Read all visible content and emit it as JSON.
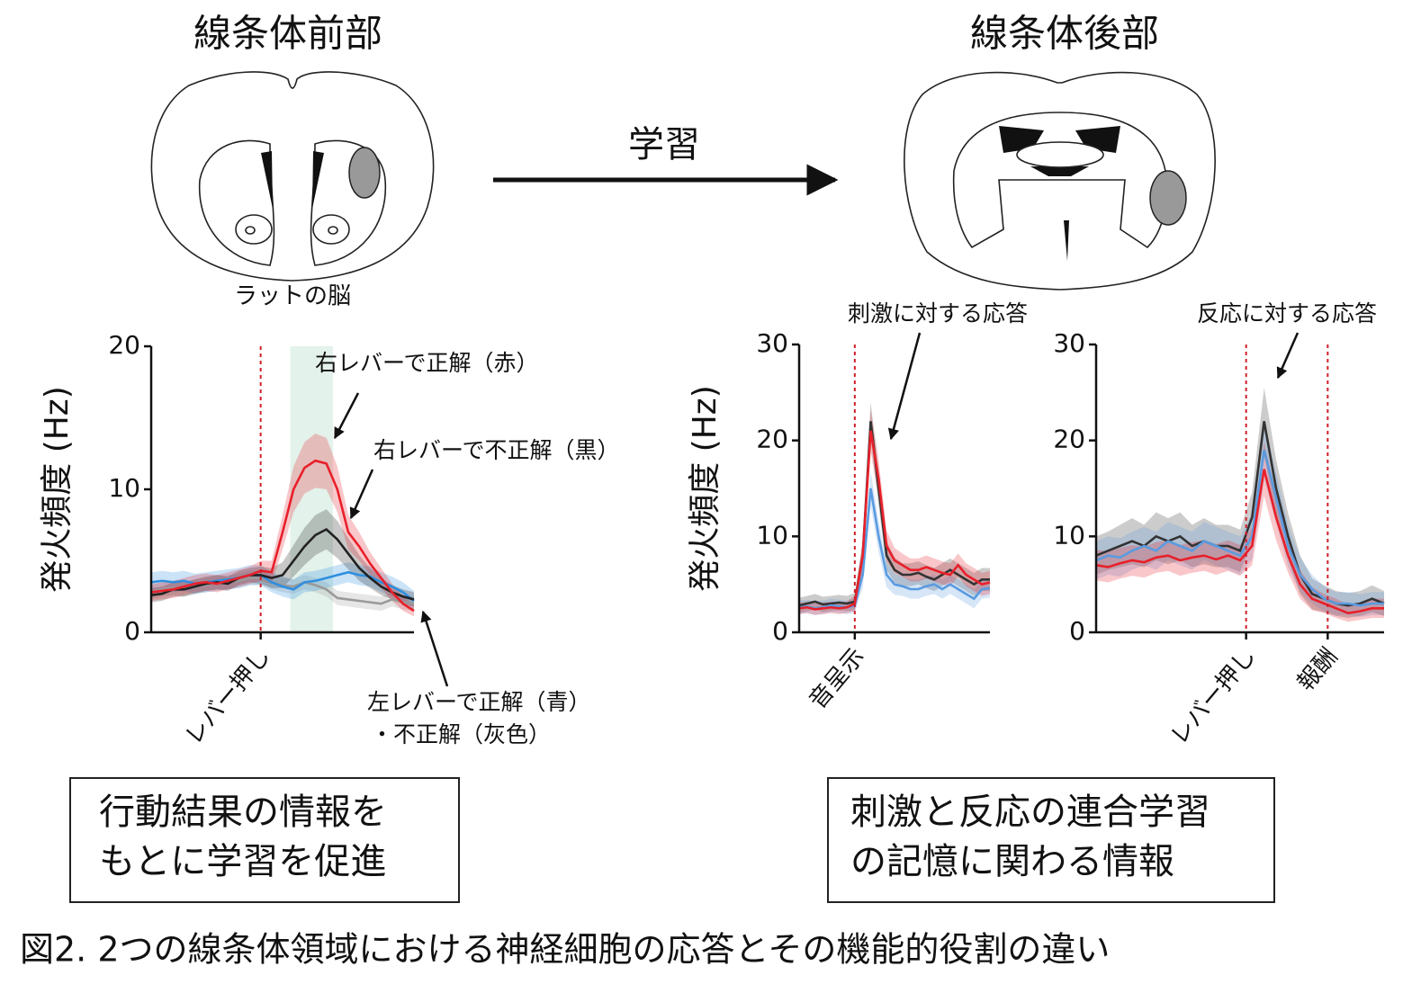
{
  "figure": {
    "titles": [
      "線条体前部",
      "線条体後部"
    ],
    "arrow_label": "学習",
    "brain_label": "ラットの脳",
    "boxes": [
      [
        "行動結果の情報を",
        "もとに学習を促進"
      ],
      [
        "刺激と反応の連合学習",
        "の記憶に関わる情報"
      ]
    ],
    "caption": "図2. 2つの線条体領域における神経細胞の応答とその機能的役割の違い"
  },
  "chart_data": [
    {
      "type": "line",
      "ylabel": "発火頻度 (Hz)",
      "xlim": [
        0,
        24
      ],
      "ylim": [
        0,
        20
      ],
      "yticks": [
        0,
        10,
        20
      ],
      "events": [
        {
          "label": "レバー押し",
          "x": 10
        }
      ],
      "highlight": [
        12.7,
        16.6
      ],
      "annotations": [
        "右レバーで正解（赤）",
        "右レバーで不正解（黒）",
        "左レバーで正解（青）",
        "・不正解（灰色）"
      ],
      "series": [
        {
          "color": "#9a9a9a",
          "values": [
            2.8,
            3,
            3.1,
            3,
            3.2,
            3.3,
            3.5,
            3.5,
            3.6,
            3.8,
            3.8,
            3.5,
            3.3,
            3.2,
            3.5,
            3.3,
            3,
            2.4,
            2.3,
            2.2,
            2.1,
            2,
            2.3,
            2.1,
            2
          ],
          "errors": [
            0.5,
            0.5,
            0.5,
            0.5,
            0.5,
            0.5,
            0.5,
            0.5,
            0.5,
            0.5,
            0.5,
            0.5,
            0.5,
            0.5,
            0.5,
            0.5,
            0.5,
            0.5,
            0.5,
            0.5,
            0.5,
            0.5,
            0.5,
            0.5,
            0.5
          ]
        },
        {
          "color": "#2e8fe0",
          "values": [
            3.5,
            3.6,
            3.5,
            3.6,
            3.4,
            3.5,
            3.6,
            3.7,
            3.8,
            4,
            4,
            3.5,
            3.2,
            3,
            3.5,
            3.6,
            3.8,
            4,
            4.2,
            4,
            3.9,
            3.5,
            3.2,
            2.8,
            2.2
          ],
          "errors": [
            0.7,
            0.7,
            0.7,
            0.7,
            0.7,
            0.7,
            0.7,
            0.7,
            0.7,
            0.7,
            0.7,
            0.7,
            0.7,
            0.7,
            0.7,
            0.7,
            0.7,
            0.7,
            0.7,
            0.7,
            0.7,
            0.7,
            0.7,
            0.7,
            0.7
          ]
        },
        {
          "color": "#222222",
          "values": [
            2.6,
            2.7,
            3,
            3,
            3.2,
            3.4,
            3.5,
            3.4,
            3.8,
            4,
            4,
            3.8,
            4,
            5,
            6,
            6.8,
            7.2,
            6.5,
            5.5,
            4.5,
            3.8,
            3.2,
            2.8,
            2.5,
            2.3
          ],
          "errors": [
            0.5,
            0.5,
            0.5,
            0.5,
            0.5,
            0.5,
            0.5,
            0.5,
            0.5,
            0.5,
            0.6,
            0.7,
            0.9,
            1.1,
            1.3,
            1.4,
            1.4,
            1.3,
            1.1,
            0.9,
            0.7,
            0.6,
            0.5,
            0.5,
            0.5
          ]
        },
        {
          "color": "#e8202a",
          "values": [
            2.8,
            2.9,
            3,
            3.2,
            3.4,
            3.5,
            3.4,
            3.6,
            3.8,
            4,
            4.3,
            4.2,
            7,
            10,
            11.5,
            12,
            11.8,
            10,
            7,
            6,
            4.8,
            3.8,
            2.8,
            2,
            1.5
          ],
          "errors": [
            0.6,
            0.6,
            0.6,
            0.6,
            0.6,
            0.6,
            0.6,
            0.6,
            0.6,
            0.6,
            0.7,
            0.8,
            1.2,
            1.6,
            1.8,
            1.9,
            1.8,
            1.6,
            1.2,
            1,
            0.8,
            0.7,
            0.6,
            0.5,
            0.4
          ]
        }
      ]
    },
    {
      "type": "line",
      "ylabel": "発火頻度 (Hz)",
      "xlim": [
        0,
        24
      ],
      "ylim": [
        0,
        30
      ],
      "yticks": [
        0,
        10,
        20,
        30
      ],
      "events": [
        {
          "label": "音呈示",
          "x": 7
        }
      ],
      "annotations": [
        "刺激に対する応答"
      ],
      "series": [
        {
          "color": "#333333",
          "values": [
            2.8,
            3,
            3.2,
            2.9,
            3,
            3.1,
            3,
            3.2,
            8,
            22,
            15,
            8,
            6.5,
            6,
            6,
            6.2,
            5.8,
            5.5,
            6,
            6.5,
            6,
            5.5,
            5,
            5.5,
            5.5
          ],
          "errors": [
            0.8,
            0.8,
            0.8,
            0.8,
            0.8,
            0.8,
            0.8,
            0.9,
            1.5,
            2,
            1.8,
            1.5,
            1.3,
            1.2,
            1.2,
            1.2,
            1.2,
            1.2,
            1.2,
            1.2,
            1.2,
            1.2,
            1.2,
            1.2,
            1.2
          ]
        },
        {
          "color": "#5a9be0",
          "values": [
            2.6,
            2.7,
            2.5,
            2.6,
            2.8,
            2.7,
            2.6,
            2.8,
            6,
            15,
            10,
            6,
            5,
            4.8,
            4.5,
            4.5,
            4.8,
            5,
            4.5,
            5,
            4.5,
            4,
            3.5,
            4.5,
            4.6
          ],
          "errors": [
            0.7,
            0.7,
            0.7,
            0.7,
            0.7,
            0.7,
            0.7,
            0.8,
            1.3,
            1.8,
            1.6,
            1.3,
            1.1,
            1,
            1,
            1,
            1,
            1,
            1,
            1,
            1,
            1,
            1,
            1,
            1
          ]
        },
        {
          "color": "#e8202a",
          "values": [
            2.5,
            2.6,
            2.4,
            2.5,
            2.6,
            2.5,
            2.6,
            3,
            8,
            21,
            16,
            9,
            7.5,
            7,
            6.5,
            6.5,
            6.8,
            6.5,
            6.2,
            6,
            7,
            6,
            5.5,
            5,
            5.2
          ],
          "errors": [
            0.6,
            0.6,
            0.6,
            0.6,
            0.6,
            0.6,
            0.6,
            0.8,
            1.5,
            2.2,
            2,
            1.6,
            1.3,
            1.2,
            1.2,
            1.2,
            1.2,
            1.2,
            1.2,
            1.2,
            1.2,
            1.2,
            1.2,
            1.2,
            1.2
          ]
        }
      ]
    },
    {
      "type": "line",
      "xlim": [
        0,
        24
      ],
      "ylim": [
        0,
        30
      ],
      "yticks": [
        0,
        10,
        20,
        30
      ],
      "events": [
        {
          "label": "レバー押し",
          "x": 12.5
        },
        {
          "label": "報酬",
          "x": 19.3
        }
      ],
      "annotations": [
        "反応に対する応答"
      ],
      "series": [
        {
          "color": "#333333",
          "values": [
            8,
            8.5,
            9,
            9.5,
            9,
            10,
            9.5,
            10,
            9,
            9.5,
            9,
            9,
            8.5,
            12,
            22,
            15,
            10,
            6,
            4,
            3.5,
            3,
            2.8,
            3,
            3.5,
            3
          ],
          "errors": [
            2,
            2,
            2.2,
            2.4,
            2.2,
            2.5,
            2.4,
            2.5,
            2.2,
            2.4,
            2.2,
            2.2,
            2.2,
            2.6,
            3.5,
            3,
            2.4,
            2,
            1.6,
            1.4,
            1.3,
            1.3,
            1.3,
            1.4,
            1.3
          ]
        },
        {
          "color": "#5a9be0",
          "values": [
            7.5,
            8,
            7.8,
            8.5,
            9,
            8.5,
            9.5,
            9,
            8.5,
            9.5,
            9,
            8.5,
            8,
            10,
            19,
            14,
            9,
            6,
            4.5,
            3.5,
            3,
            3,
            2.8,
            3,
            3
          ],
          "errors": [
            2,
            2,
            2,
            2,
            2,
            2,
            2,
            2,
            2,
            2,
            2,
            2,
            2,
            2.4,
            3,
            2.6,
            2.2,
            1.8,
            1.5,
            1.3,
            1.2,
            1.2,
            1.2,
            1.2,
            1.2
          ]
        },
        {
          "color": "#e8202a",
          "values": [
            7,
            6.8,
            7.2,
            7.5,
            7.3,
            7.8,
            8,
            7.5,
            7.8,
            8,
            7.6,
            8,
            7.5,
            9,
            17,
            12,
            8,
            5,
            3.5,
            3,
            2.5,
            2,
            2.2,
            2.5,
            2.5
          ],
          "errors": [
            1.6,
            1.6,
            1.6,
            1.6,
            1.6,
            1.6,
            1.6,
            1.6,
            1.6,
            1.6,
            1.6,
            1.6,
            1.6,
            2,
            2.8,
            2.4,
            1.8,
            1.5,
            1.2,
            1,
            1,
            0.9,
            0.9,
            1,
            1
          ]
        }
      ]
    }
  ]
}
